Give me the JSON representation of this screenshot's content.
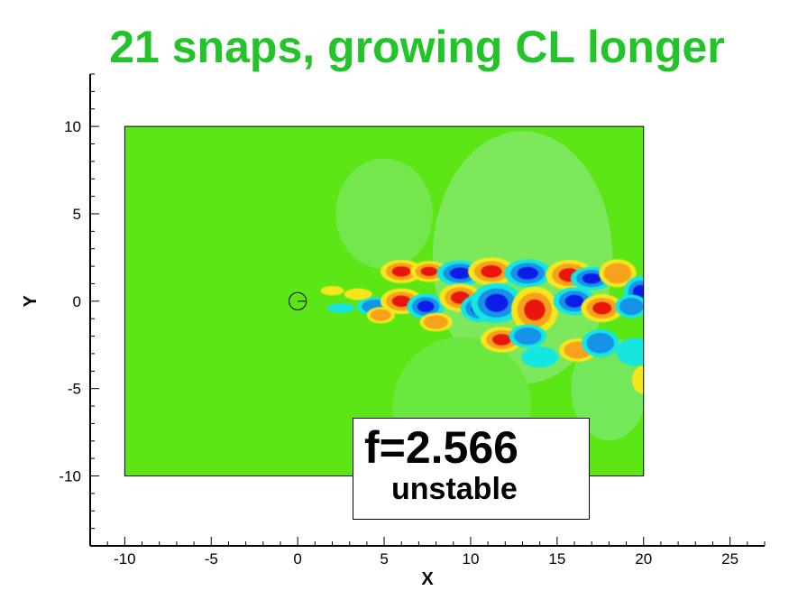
{
  "chart_data": {
    "type": "heatmap",
    "title": "21 snaps, growing CL longer",
    "xlabel": "X",
    "ylabel": "Y",
    "xlim": [
      -12,
      27
    ],
    "ylim": [
      -14,
      13
    ],
    "x_ticks": [
      -10,
      -5,
      0,
      5,
      10,
      15,
      20,
      25
    ],
    "y_ticks": [
      -10,
      -5,
      0,
      5,
      10
    ],
    "domain": {
      "x": [
        -10,
        20
      ],
      "y": [
        -10,
        10
      ]
    },
    "cylinder": {
      "x": 0,
      "y": 0,
      "r": 0.5
    },
    "background_color": "#5de615",
    "colors": {
      "positive_max": "#e8170f",
      "positive_mid": "#f6e61e",
      "negative_max": "#0a1ee6",
      "negative_mid": "#16e6e0"
    },
    "annotation": {
      "frequency": "f=2.566",
      "status": "unstable"
    },
    "grid": false,
    "legend": "none"
  }
}
